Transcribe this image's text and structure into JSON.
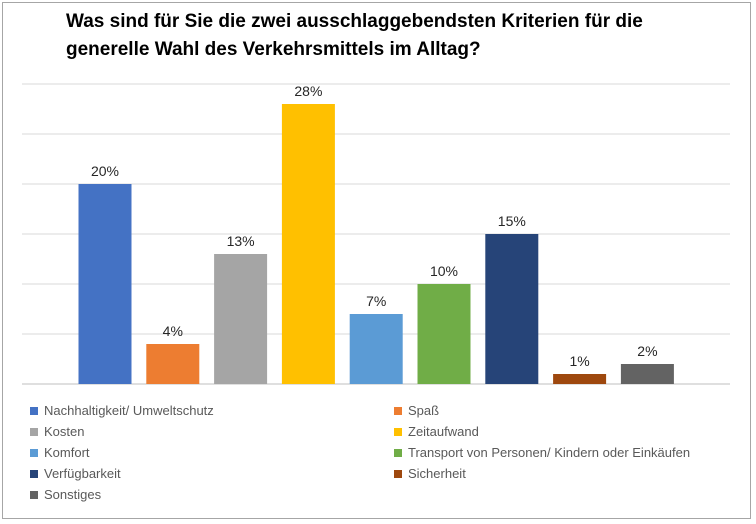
{
  "chart_data": {
    "type": "bar",
    "title": "Was sind für Sie die zwei ausschlaggebendsten Kriterien für die generelle Wahl des Verkehrsmittels im Alltag?",
    "title_lines": [
      "Was sind für Sie die zwei ausschlaggebendsten Kriterien für die",
      "generelle Wahl des Verkehrsmittels im Alltag?"
    ],
    "xlabel": "",
    "ylabel": "",
    "ylim": [
      0,
      30
    ],
    "grid": true,
    "legend_position": "bottom",
    "categories": [
      "Nachhaltigkeit/ Umweltschutz",
      "Spaß",
      "Kosten",
      "Zeitaufwand",
      "Komfort",
      "Transport von Personen/ Kindern oder Einkäufen",
      "Verfügbarkeit",
      "Sicherheit",
      "Sonstiges"
    ],
    "values": [
      20,
      4,
      13,
      28,
      7,
      10,
      15,
      1,
      2
    ],
    "data_labels": [
      "20%",
      "4%",
      "13%",
      "28%",
      "7%",
      "10%",
      "15%",
      "1%",
      "2%"
    ],
    "colors": [
      "#4472c4",
      "#ed7d31",
      "#a5a5a5",
      "#ffc000",
      "#5b9bd5",
      "#70ad47",
      "#264478",
      "#9e480e",
      "#636363"
    ]
  }
}
